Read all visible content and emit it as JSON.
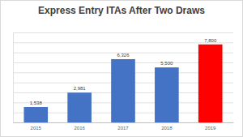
{
  "chart_data": {
    "type": "bar",
    "title": "Express Entry ITAs After Two Draws",
    "categories": [
      "2015",
      "2016",
      "2017",
      "2018",
      "2019"
    ],
    "values": [
      1538,
      2981,
      6326,
      5500,
      7800
    ],
    "value_labels": [
      "1,538",
      "2,981",
      "6,326",
      "5,500",
      "7,800"
    ],
    "colors": [
      "#4472c4",
      "#4472c4",
      "#4472c4",
      "#4472c4",
      "#ff0000"
    ],
    "ylim": [
      0,
      9000
    ],
    "yticks": [
      0,
      1000,
      2000,
      3000,
      4000,
      5000,
      6000,
      7000,
      8000,
      9000
    ],
    "grid": true,
    "data_labels": true,
    "tick_labels": "x"
  }
}
